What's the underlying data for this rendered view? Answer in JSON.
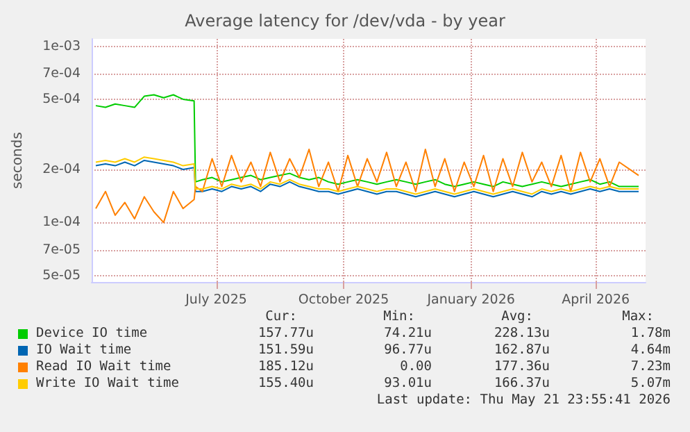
{
  "chart_data": {
    "type": "line",
    "title": "Average latency for /dev/vda - by year",
    "ylabel": "seconds",
    "x": [
      "2025-04-20",
      "2025-04-27",
      "2025-05-04",
      "2025-05-11",
      "2025-05-18",
      "2025-05-25",
      "2025-06-01",
      "2025-06-08",
      "2025-06-15",
      "2025-06-22",
      "2025-06-30",
      "2025-07-01",
      "2025-07-06",
      "2025-07-13",
      "2025-07-20",
      "2025-07-27",
      "2025-08-03",
      "2025-08-10",
      "2025-08-17",
      "2025-08-24",
      "2025-08-31",
      "2025-09-07",
      "2025-09-14",
      "2025-09-21",
      "2025-09-28",
      "2025-10-05",
      "2025-10-12",
      "2025-10-19",
      "2025-10-26",
      "2025-11-02",
      "2025-11-09",
      "2025-11-16",
      "2025-11-23",
      "2025-11-30",
      "2025-12-07",
      "2025-12-14",
      "2025-12-21",
      "2025-12-28",
      "2026-01-04",
      "2026-01-11",
      "2026-01-18",
      "2026-01-25",
      "2026-02-01",
      "2026-02-08",
      "2026-02-15",
      "2026-02-22",
      "2026-03-01",
      "2026-03-08",
      "2026-03-15",
      "2026-03-22",
      "2026-03-29",
      "2026-04-05",
      "2026-04-12",
      "2026-04-19",
      "2026-04-26",
      "2026-05-03",
      "2026-05-17"
    ],
    "series": [
      {
        "name": "Device IO time",
        "color": "#00cc00",
        "values": [
          0.00046,
          0.00045,
          0.00047,
          0.00046,
          0.00045,
          0.00052,
          0.00053,
          0.00051,
          0.00053,
          0.0005,
          0.00049,
          0.00017,
          0.000175,
          0.00018,
          0.00017,
          0.000175,
          0.00018,
          0.000185,
          0.000175,
          0.00018,
          0.000185,
          0.00019,
          0.00018,
          0.000175,
          0.00018,
          0.00017,
          0.000165,
          0.00017,
          0.000175,
          0.00017,
          0.000165,
          0.00017,
          0.000175,
          0.00017,
          0.000165,
          0.00017,
          0.000175,
          0.000165,
          0.00016,
          0.000165,
          0.00017,
          0.000165,
          0.00016,
          0.00017,
          0.000165,
          0.00016,
          0.000165,
          0.00017,
          0.000165,
          0.00016,
          0.000165,
          0.00017,
          0.000175,
          0.000165,
          0.00017,
          0.00016,
          0.00016
        ]
      },
      {
        "name": "IO Wait time",
        "color": "#0066b3",
        "values": [
          0.00021,
          0.000215,
          0.00021,
          0.00022,
          0.00021,
          0.000225,
          0.00022,
          0.000215,
          0.00021,
          0.0002,
          0.000205,
          0.00015,
          0.00015,
          0.000155,
          0.00015,
          0.00016,
          0.000155,
          0.00016,
          0.00015,
          0.000165,
          0.00016,
          0.00017,
          0.00016,
          0.000155,
          0.00015,
          0.00015,
          0.000145,
          0.00015,
          0.000155,
          0.00015,
          0.000145,
          0.00015,
          0.00015,
          0.000145,
          0.00014,
          0.000145,
          0.00015,
          0.000145,
          0.00014,
          0.000145,
          0.00015,
          0.000145,
          0.00014,
          0.000145,
          0.00015,
          0.000145,
          0.00014,
          0.00015,
          0.000145,
          0.00015,
          0.000145,
          0.00015,
          0.000155,
          0.00015,
          0.000155,
          0.00015,
          0.00015
        ]
      },
      {
        "name": "Read IO Wait time",
        "color": "#ff8000",
        "values": [
          0.00012,
          0.00015,
          0.00011,
          0.00013,
          0.000105,
          0.00014,
          0.000115,
          0.0001,
          0.00015,
          0.00012,
          0.000135,
          0.00016,
          0.00015,
          0.00023,
          0.00016,
          0.00024,
          0.00017,
          0.00022,
          0.00016,
          0.00025,
          0.00017,
          0.00023,
          0.00018,
          0.00026,
          0.00016,
          0.00022,
          0.00015,
          0.00024,
          0.00016,
          0.00023,
          0.00017,
          0.00025,
          0.00016,
          0.00022,
          0.00015,
          0.00026,
          0.00016,
          0.00023,
          0.00015,
          0.00022,
          0.00016,
          0.00024,
          0.00015,
          0.00023,
          0.00016,
          0.00025,
          0.00017,
          0.00022,
          0.00016,
          0.00024,
          0.00015,
          0.00025,
          0.00017,
          0.00023,
          0.00016,
          0.00022,
          0.000185
        ]
      },
      {
        "name": "Write IO Wait time",
        "color": "#ffcc00",
        "values": [
          0.00022,
          0.000225,
          0.00022,
          0.00023,
          0.00022,
          0.000235,
          0.00023,
          0.000225,
          0.00022,
          0.00021,
          0.000215,
          0.000155,
          0.000155,
          0.00016,
          0.000155,
          0.000165,
          0.00016,
          0.000165,
          0.000155,
          0.00017,
          0.000165,
          0.000175,
          0.000165,
          0.00016,
          0.000155,
          0.000155,
          0.00015,
          0.000155,
          0.00016,
          0.000155,
          0.00015,
          0.000155,
          0.000155,
          0.00015,
          0.000145,
          0.00015,
          0.000155,
          0.00015,
          0.000145,
          0.00015,
          0.000155,
          0.00015,
          0.000145,
          0.00015,
          0.000155,
          0.00015,
          0.000145,
          0.000155,
          0.00015,
          0.000155,
          0.00015,
          0.000155,
          0.00016,
          0.000155,
          0.00016,
          0.000155,
          0.000155
        ]
      }
    ],
    "xlim": [
      "2025-04-17",
      "2026-05-22"
    ],
    "xticks": [
      {
        "value": "2025-07-16",
        "label": "July 2025"
      },
      {
        "value": "2025-10-16",
        "label": "October 2025"
      },
      {
        "value": "2026-01-16",
        "label": "January 2026"
      },
      {
        "value": "2026-04-16",
        "label": "April 2026"
      }
    ],
    "ylim": [
      4.6e-05,
      0.0011
    ],
    "yticks": [
      {
        "value": 5e-05,
        "label": "5e-05"
      },
      {
        "value": 7e-05,
        "label": "7e-05"
      },
      {
        "value": 0.0001,
        "label": "1e-04"
      },
      {
        "value": 0.0002,
        "label": "2e-04"
      },
      {
        "value": 0.0005,
        "label": "5e-04"
      },
      {
        "value": 0.0007,
        "label": "7e-04"
      },
      {
        "value": 0.001,
        "label": "1e-03"
      }
    ],
    "log": "y",
    "grid": true,
    "legend": "bottom",
    "marker": "none",
    "annotations": [
      "Cur:",
      "Min:",
      "Avg:",
      "Max:",
      "157.77u",
      "74.21u",
      "228.13u",
      "1.78m",
      "151.59u",
      "96.77u",
      "162.87u",
      "4.64m",
      "185.12u",
      "0.00",
      "177.36u",
      "7.23m",
      "155.40u",
      "93.01u",
      "166.37u",
      "5.07m",
      "Last update: Thu May 21 23:55:41 2026"
    ]
  }
}
